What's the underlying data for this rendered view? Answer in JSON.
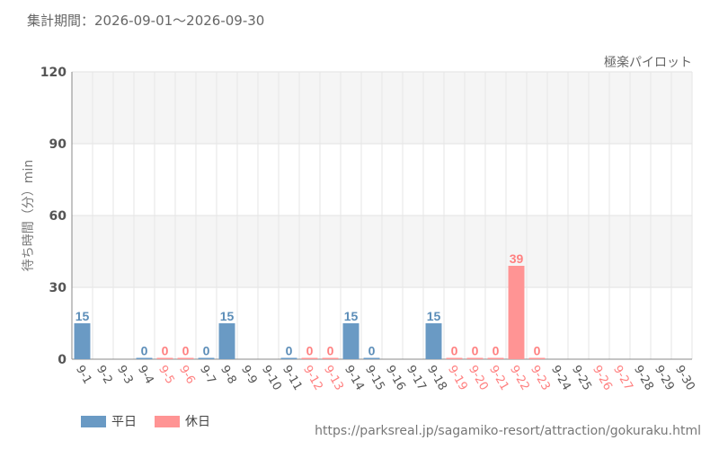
{
  "period_label": "集計期間：2026-09-01～2026-09-30",
  "attraction_name": "極楽パイロット",
  "source_url": "https://parksreal.jp/sagamiko-resort/attraction/gokuraku.html",
  "colors": {
    "weekday": "#6a9ac4",
    "holiday": "#ff9494",
    "weekday_text": "#5b8db8",
    "holiday_text": "#ff8080"
  },
  "chart_data": {
    "type": "bar",
    "title": "",
    "xlabel": "",
    "ylabel": "待ち時間（分）min",
    "ylim": [
      0,
      120
    ],
    "yticks": [
      "0",
      "30",
      "60",
      "90",
      "120"
    ],
    "grid": true,
    "legend_position": "bottom-left",
    "legend": [
      {
        "key": "weekday",
        "label": "平日"
      },
      {
        "key": "holiday",
        "label": "休日"
      }
    ],
    "categories": [
      "9-1",
      "9-2",
      "9-3",
      "9-4",
      "9-5",
      "9-6",
      "9-7",
      "9-8",
      "9-9",
      "9-10",
      "9-11",
      "9-12",
      "9-13",
      "9-14",
      "9-15",
      "9-16",
      "9-17",
      "9-18",
      "9-19",
      "9-20",
      "9-21",
      "9-22",
      "9-23",
      "9-24",
      "9-25",
      "9-26",
      "9-27",
      "9-28",
      "9-29",
      "9-30"
    ],
    "day_type": [
      "weekday",
      "weekday",
      "weekday",
      "weekday",
      "holiday",
      "holiday",
      "weekday",
      "weekday",
      "weekday",
      "weekday",
      "weekday",
      "holiday",
      "holiday",
      "weekday",
      "weekday",
      "weekday",
      "weekday",
      "weekday",
      "holiday",
      "holiday",
      "holiday",
      "holiday",
      "holiday",
      "weekday",
      "weekday",
      "holiday",
      "holiday",
      "weekday",
      "weekday",
      "weekday"
    ],
    "values": [
      15,
      null,
      null,
      0,
      0,
      0,
      0,
      15,
      null,
      null,
      0,
      0,
      0,
      15,
      0,
      null,
      null,
      15,
      0,
      0,
      0,
      39,
      0,
      null,
      null,
      null,
      null,
      null,
      null,
      null
    ]
  }
}
